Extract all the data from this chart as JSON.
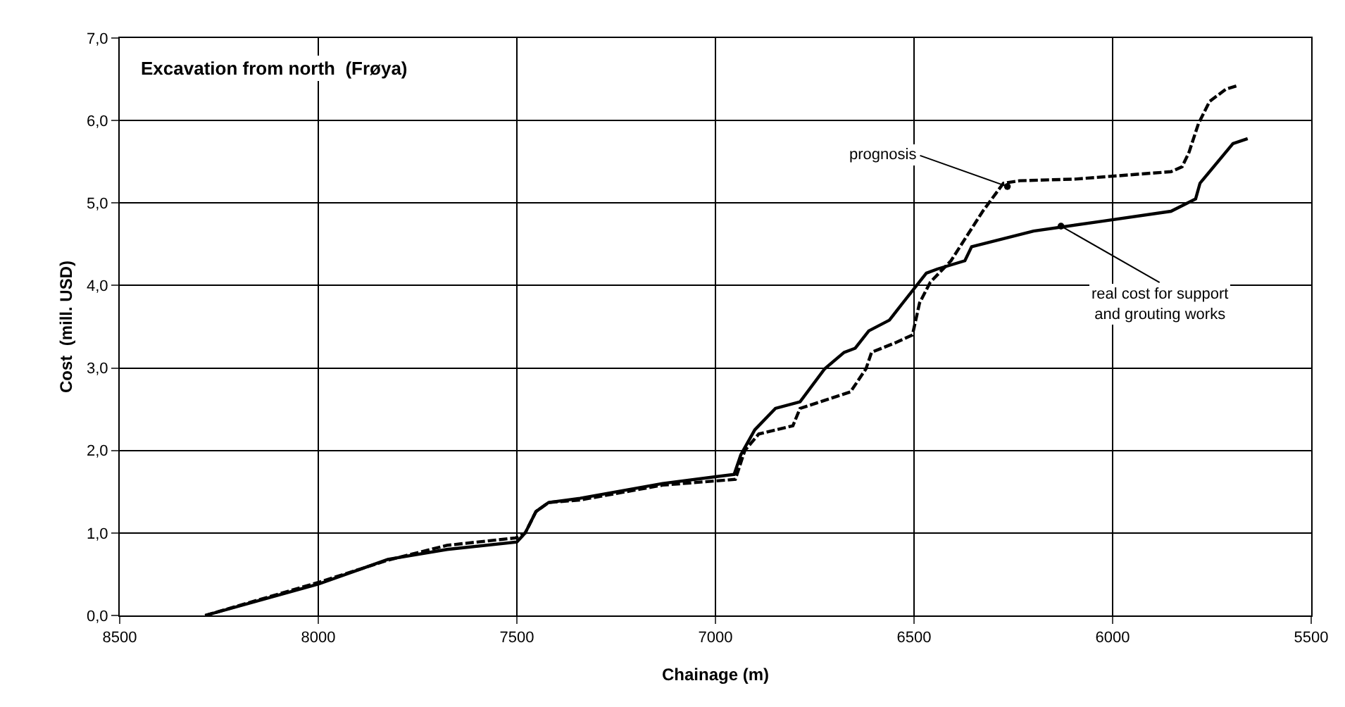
{
  "chart_data": {
    "type": "line",
    "title": "Excavation from north  (Frøya)",
    "xlabel": "Chainage (m)",
    "ylabel": "Cost  (mill. USD)",
    "xlim": [
      8500,
      5500
    ],
    "xticks": [
      8500,
      8000,
      7500,
      7000,
      6500,
      6000,
      5500
    ],
    "ylim": [
      0,
      7
    ],
    "yticks": [
      {
        "value": 0,
        "label": "0,0"
      },
      {
        "value": 1,
        "label": "1,0"
      },
      {
        "value": 2,
        "label": "2,0"
      },
      {
        "value": 3,
        "label": "3,0"
      },
      {
        "value": 4,
        "label": "4,0"
      },
      {
        "value": 5,
        "label": "5,0"
      },
      {
        "value": 6,
        "label": "6,0"
      },
      {
        "value": 7,
        "label": "7,0"
      }
    ],
    "grid": true,
    "marker": "none",
    "series": [
      {
        "color": "#000000",
        "line_style": "solid",
        "x": [
          8285,
          8000,
          7825,
          7676,
          7500,
          7479,
          7452,
          7420,
          7341,
          7133,
          6953,
          6936,
          6901,
          6849,
          6787,
          6725,
          6676,
          6648,
          6614,
          6562,
          6528,
          6469,
          6441,
          6372,
          6355,
          6199,
          6026,
          5853,
          5791,
          5780,
          5697,
          5660
        ],
        "values": [
          0,
          0.38,
          0.68,
          0.8,
          0.89,
          1.0,
          1.26,
          1.37,
          1.42,
          1.6,
          1.71,
          1.95,
          2.25,
          2.51,
          2.59,
          2.99,
          3.19,
          3.24,
          3.45,
          3.58,
          3.79,
          4.15,
          4.2,
          4.3,
          4.47,
          4.66,
          4.78,
          4.9,
          5.05,
          5.24,
          5.72,
          5.78
        ]
      },
      {
        "color": "#000000",
        "line_style": "dashed",
        "x": [
          8285,
          8000,
          7825,
          7676,
          7503,
          7479,
          7452,
          7420,
          7341,
          7133,
          6950,
          6926,
          6891,
          6805,
          6787,
          6660,
          6621,
          6607,
          6545,
          6504,
          6486,
          6459,
          6407,
          6327,
          6275,
          6234,
          6095,
          5853,
          5825,
          5808,
          5784,
          5756,
          5715,
          5687
        ],
        "values": [
          0,
          0.4,
          0.67,
          0.85,
          0.94,
          1.0,
          1.26,
          1.37,
          1.4,
          1.58,
          1.65,
          2.0,
          2.2,
          2.3,
          2.51,
          2.71,
          2.99,
          3.19,
          3.31,
          3.4,
          3.79,
          4.04,
          4.3,
          4.9,
          5.24,
          5.27,
          5.29,
          5.38,
          5.44,
          5.61,
          5.96,
          6.23,
          6.38,
          6.42
        ]
      }
    ],
    "annotations": [
      {
        "text": "prognosis",
        "x": 6265,
        "y": 5.2
      },
      {
        "text": "real cost for support\nand grouting works",
        "x": 6130,
        "y": 4.72
      }
    ]
  }
}
